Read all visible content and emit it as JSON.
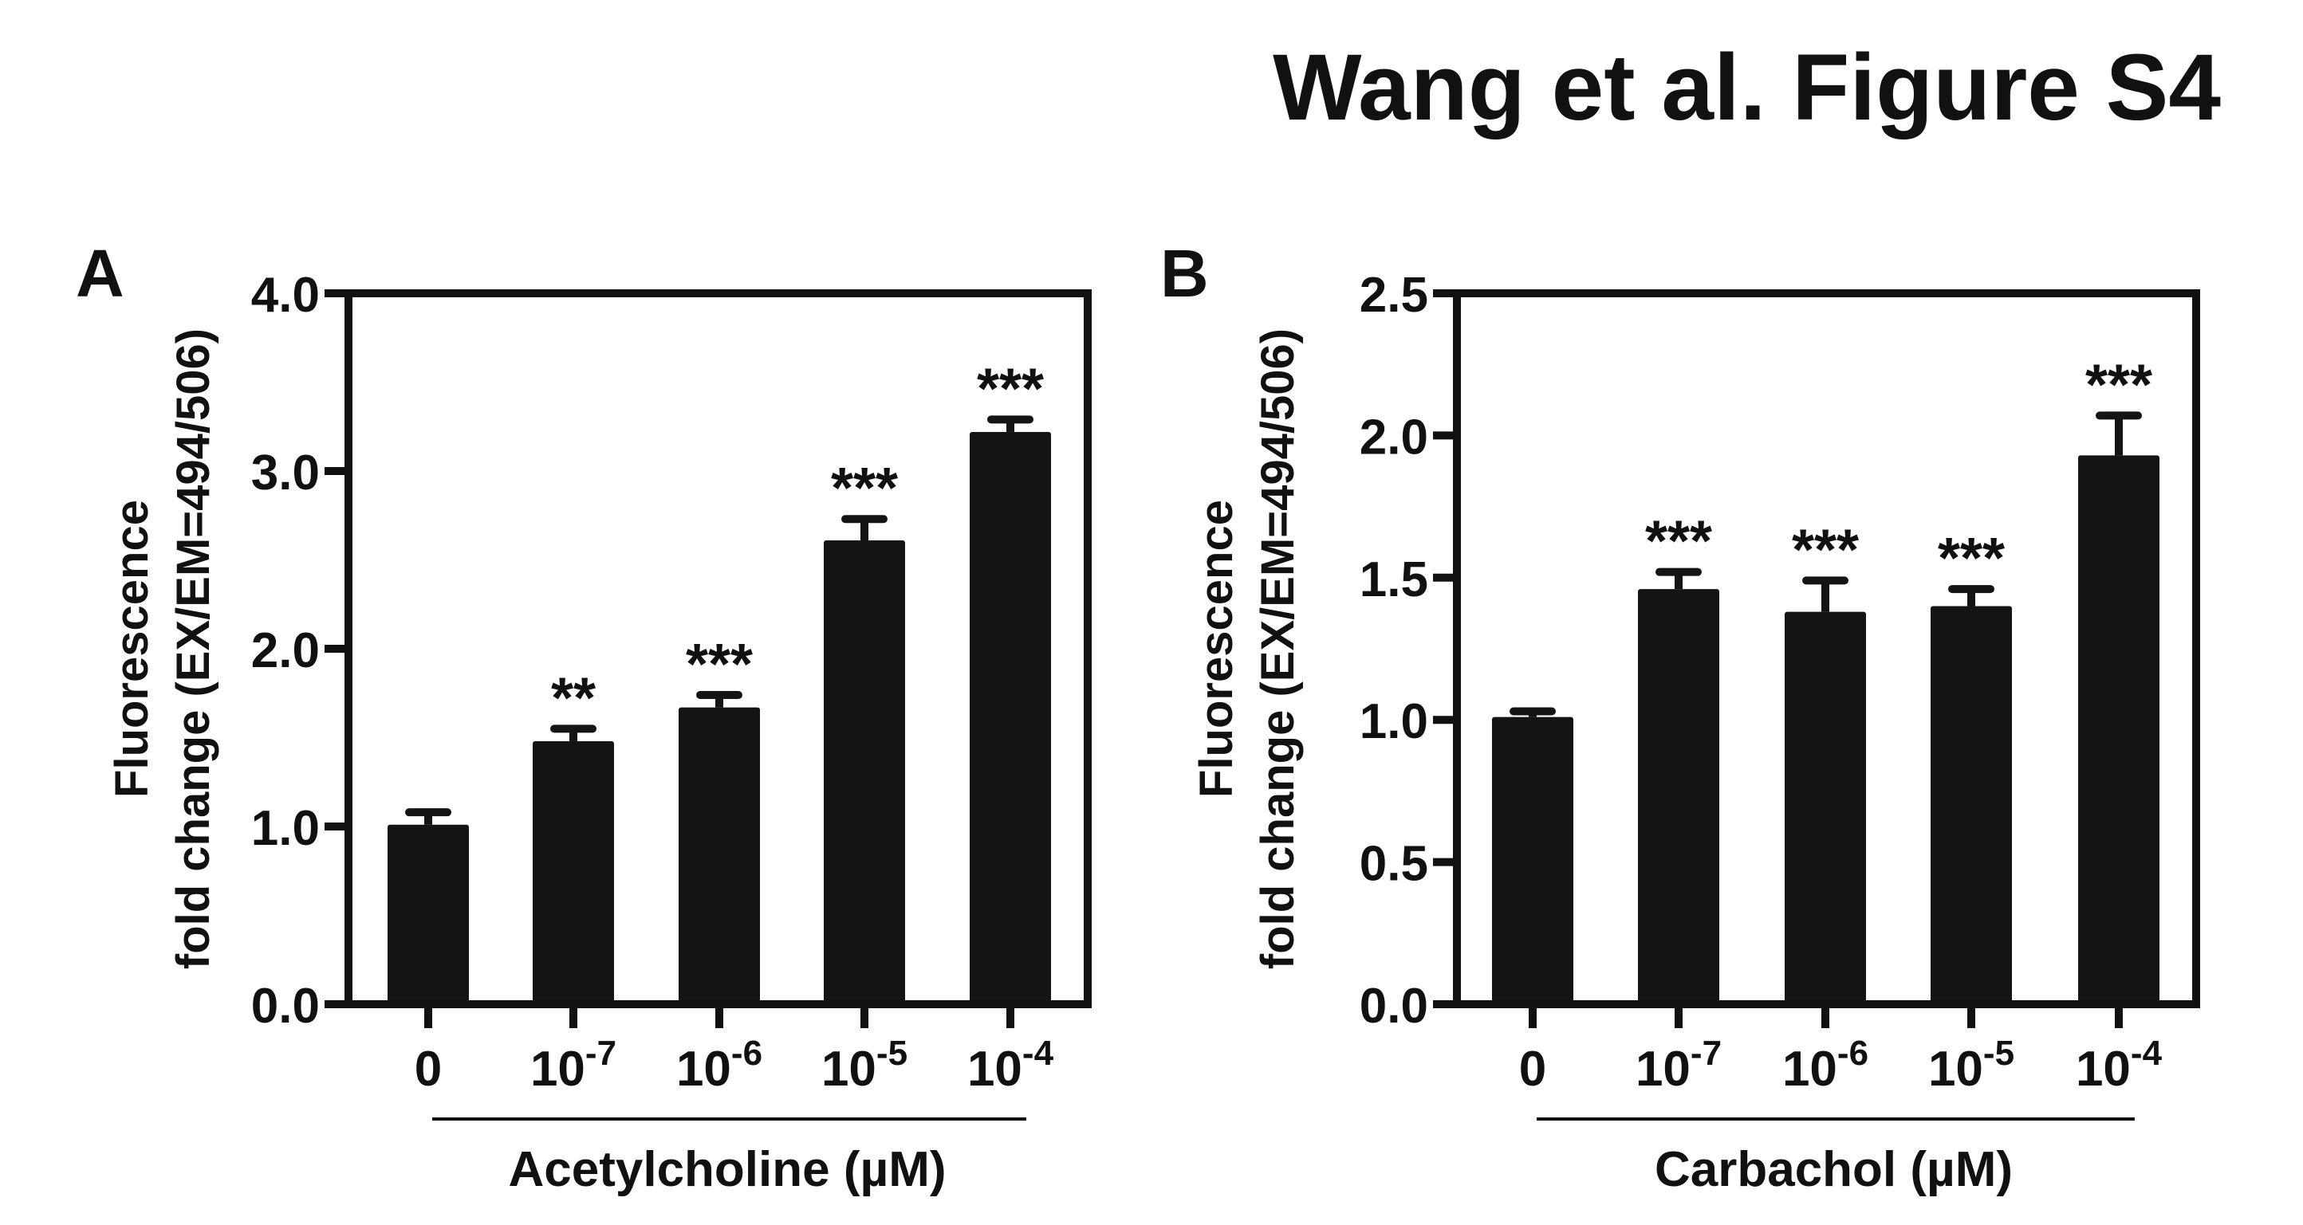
{
  "figure_title": "Wang et al. Figure S4",
  "colors": {
    "bar": "#141414",
    "axis": "#111111",
    "background": "#ffffff"
  },
  "chart_data": [
    {
      "type": "bar",
      "panel": "A",
      "ylabel_line1": "Fluorescence",
      "ylabel_line2": "fold change (EX/EM=494/506)",
      "xlabel": "Acetylcholine (µM)",
      "ylim": [
        0,
        4.0
      ],
      "yticks": [
        "0.0",
        "1.0",
        "2.0",
        "3.0",
        "4.0"
      ],
      "categories": [
        {
          "base": "0",
          "exp": ""
        },
        {
          "base": "10",
          "exp": "-7"
        },
        {
          "base": "10",
          "exp": "-6"
        },
        {
          "base": "10",
          "exp": "-5"
        },
        {
          "base": "10",
          "exp": "-4"
        }
      ],
      "values": [
        1.01,
        1.48,
        1.67,
        2.61,
        3.22
      ],
      "errors": [
        0.07,
        0.07,
        0.07,
        0.12,
        0.07
      ],
      "significance": [
        "",
        "**",
        "***",
        "***",
        "***"
      ],
      "grid": false
    },
    {
      "type": "bar",
      "panel": "B",
      "ylabel_line1": "Fluorescence",
      "ylabel_line2": "fold change (EX/EM=494/506)",
      "xlabel": "Carbachol (µM)",
      "ylim": [
        0,
        2.5
      ],
      "yticks": [
        "0.0",
        "0.5",
        "1.0",
        "1.5",
        "2.0",
        "2.5"
      ],
      "categories": [
        {
          "base": "0",
          "exp": ""
        },
        {
          "base": "10",
          "exp": "-7"
        },
        {
          "base": "10",
          "exp": "-6"
        },
        {
          "base": "10",
          "exp": "-5"
        },
        {
          "base": "10",
          "exp": "-4"
        }
      ],
      "values": [
        1.01,
        1.46,
        1.38,
        1.4,
        1.93
      ],
      "errors": [
        0.02,
        0.06,
        0.11,
        0.06,
        0.14
      ],
      "significance": [
        "",
        "***",
        "***",
        "***",
        "***"
      ],
      "grid": false
    }
  ]
}
